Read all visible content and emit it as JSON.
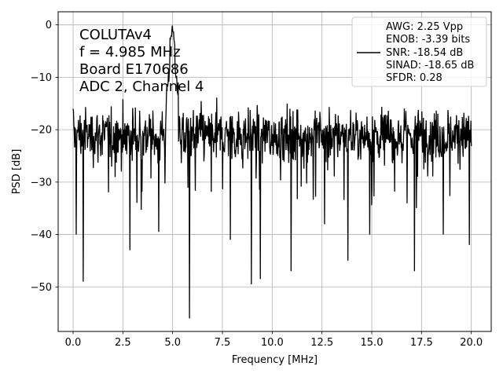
{
  "chart_data": {
    "type": "line",
    "title": "",
    "xlabel": "Frequency [MHz]",
    "ylabel": "PSD [dB]",
    "xlim": [
      -0.75,
      21.0
    ],
    "ylim": [
      -58.5,
      2.5
    ],
    "xticks": [
      0.0,
      2.5,
      5.0,
      7.5,
      10.0,
      12.5,
      15.0,
      17.5,
      20.0
    ],
    "xtick_labels": [
      "0.0",
      "2.5",
      "5.0",
      "7.5",
      "10.0",
      "12.5",
      "15.0",
      "17.5",
      "20.0"
    ],
    "yticks": [
      0,
      -10,
      -20,
      -30,
      -40,
      -50
    ],
    "ytick_labels": [
      "0",
      "−10",
      "−20",
      "−30",
      "−40",
      "−50"
    ],
    "grid": true,
    "color": "#000000",
    "annotation": [
      "COLUTAv4",
      "f = 4.985 MHz",
      "Board E170686",
      "ADC 2, Channel 4"
    ],
    "legend": {
      "location": "top-right",
      "entries": [
        "AWG: 2.25 Vpp",
        "ENOB: -3.39 bits",
        "SNR: -18.54 dB",
        "SINAD: -18.65 dB",
        "SFDR: 0.28"
      ]
    },
    "series": [
      {
        "name": "",
        "x_range": [
          0.0,
          20.0
        ],
        "points": 1024,
        "noise_floor_db": -21,
        "noise_band_db": [
          -28,
          -13
        ],
        "peak": {
          "x": 4.985,
          "y": 0
        },
        "notable_minima": [
          {
            "x": 0.5,
            "y": -49
          },
          {
            "x": 0.15,
            "y": -40
          },
          {
            "x": 2.85,
            "y": -43
          },
          {
            "x": 5.85,
            "y": -56
          },
          {
            "x": 8.95,
            "y": -49.5
          },
          {
            "x": 9.4,
            "y": -48.5
          },
          {
            "x": 10.95,
            "y": -47
          },
          {
            "x": 13.8,
            "y": -45
          },
          {
            "x": 17.15,
            "y": -47
          },
          {
            "x": 19.9,
            "y": -42
          },
          {
            "x": 4.3,
            "y": -39.5
          },
          {
            "x": 7.9,
            "y": -41
          },
          {
            "x": 14.9,
            "y": -40
          },
          {
            "x": 18.6,
            "y": -40
          }
        ]
      }
    ]
  }
}
